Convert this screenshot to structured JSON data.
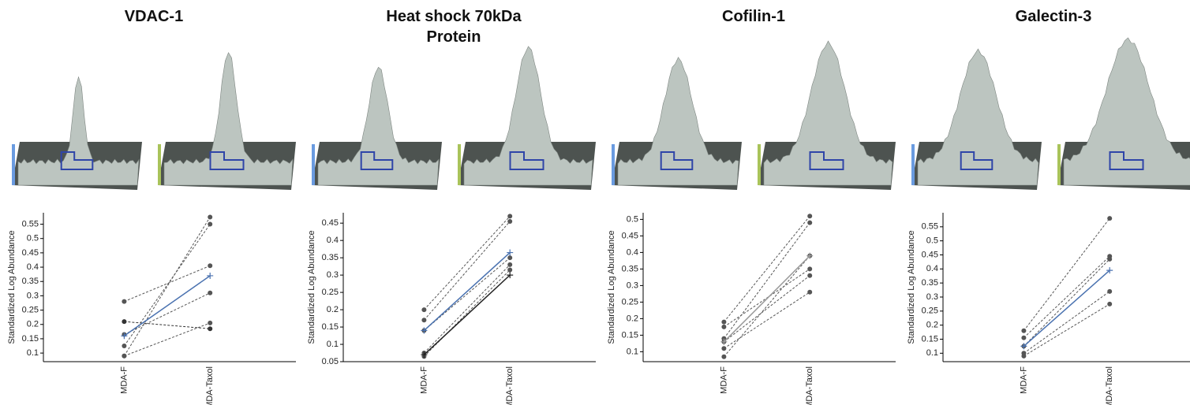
{
  "chart_data": [
    {
      "type": "line",
      "title": "VDAC-1",
      "ylabel": "Standardized Log Abundance",
      "categories": [
        "MDA-F",
        "MDA-Taxol"
      ],
      "ylim": [
        0.07,
        0.59
      ],
      "yticks": [
        0.1,
        0.15,
        0.2,
        0.25,
        0.3,
        0.35,
        0.4,
        0.45,
        0.5,
        0.55
      ],
      "series": [
        {
          "color": "#555555",
          "dashed": true,
          "values": [
            0.09,
            0.575
          ]
        },
        {
          "color": "#555555",
          "dashed": true,
          "values": [
            0.125,
            0.55
          ]
        },
        {
          "color": "#555555",
          "dashed": true,
          "values": [
            0.28,
            0.405
          ]
        },
        {
          "color": "#555555",
          "dashed": true,
          "values": [
            0.165,
            0.31
          ]
        },
        {
          "color": "#333333",
          "dashed": true,
          "values": [
            0.21,
            0.185
          ]
        },
        {
          "color": "#555555",
          "dashed": true,
          "values": [
            0.09,
            0.205
          ]
        },
        {
          "color": "#4a72b0",
          "dashed": false,
          "values": [
            0.16,
            0.37
          ]
        }
      ]
    },
    {
      "type": "line",
      "title": "Heat shock 70kDa Protein",
      "ylabel": "Standardized Log Abundance",
      "categories": [
        "MDA-F",
        "MDA-Taxol"
      ],
      "ylim": [
        0.05,
        0.48
      ],
      "yticks": [
        0.05,
        0.1,
        0.15,
        0.2,
        0.25,
        0.3,
        0.35,
        0.4,
        0.45
      ],
      "series": [
        {
          "color": "#555555",
          "dashed": true,
          "values": [
            0.2,
            0.47
          ]
        },
        {
          "color": "#555555",
          "dashed": true,
          "values": [
            0.17,
            0.455
          ]
        },
        {
          "color": "#555555",
          "dashed": true,
          "values": [
            0.14,
            0.35
          ]
        },
        {
          "color": "#555555",
          "dashed": true,
          "values": [
            0.075,
            0.33
          ]
        },
        {
          "color": "#555555",
          "dashed": true,
          "values": [
            0.065,
            0.315
          ]
        },
        {
          "color": "#222222",
          "dashed": false,
          "values": [
            0.07,
            0.3
          ]
        },
        {
          "color": "#4a72b0",
          "dashed": false,
          "values": [
            0.14,
            0.365
          ]
        }
      ]
    },
    {
      "type": "line",
      "title": "Cofilin-1",
      "ylabel": "Standardized Log Abundance",
      "categories": [
        "MDA-F",
        "MDA-Taxol"
      ],
      "ylim": [
        0.07,
        0.52
      ],
      "yticks": [
        0.1,
        0.15,
        0.2,
        0.25,
        0.3,
        0.35,
        0.4,
        0.45,
        0.5
      ],
      "series": [
        {
          "color": "#555555",
          "dashed": true,
          "values": [
            0.19,
            0.51
          ]
        },
        {
          "color": "#555555",
          "dashed": true,
          "values": [
            0.175,
            0.35
          ]
        },
        {
          "color": "#555555",
          "dashed": true,
          "values": [
            0.14,
            0.49
          ]
        },
        {
          "color": "#555555",
          "dashed": true,
          "values": [
            0.13,
            0.33
          ]
        },
        {
          "color": "#555555",
          "dashed": true,
          "values": [
            0.11,
            0.28
          ]
        },
        {
          "color": "#555555",
          "dashed": true,
          "values": [
            0.085,
            0.39
          ]
        },
        {
          "color": "#999999",
          "dashed": false,
          "values": [
            0.13,
            0.39
          ]
        }
      ]
    },
    {
      "type": "line",
      "title": "Galectin-3",
      "ylabel": "Standardized Log Abundance",
      "categories": [
        "MDA-F",
        "MDA-Taxol"
      ],
      "ylim": [
        0.07,
        0.6
      ],
      "yticks": [
        0.1,
        0.15,
        0.2,
        0.25,
        0.3,
        0.35,
        0.4,
        0.45,
        0.5,
        0.55
      ],
      "series": [
        {
          "color": "#555555",
          "dashed": true,
          "values": [
            0.18,
            0.58
          ]
        },
        {
          "color": "#555555",
          "dashed": true,
          "values": [
            0.155,
            0.445
          ]
        },
        {
          "color": "#555555",
          "dashed": true,
          "values": [
            0.125,
            0.435
          ]
        },
        {
          "color": "#555555",
          "dashed": true,
          "values": [
            0.1,
            0.32
          ]
        },
        {
          "color": "#555555",
          "dashed": true,
          "values": [
            0.09,
            0.275
          ]
        },
        {
          "color": "#4a72b0",
          "dashed": false,
          "values": [
            0.125,
            0.395
          ]
        }
      ]
    }
  ]
}
